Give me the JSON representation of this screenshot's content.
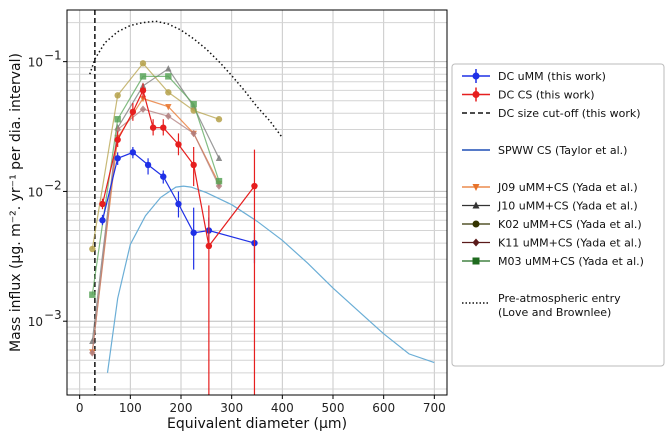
{
  "chart_data": {
    "type": "line",
    "xlabel": "Equivalent diameter (μm)",
    "ylabel": "Mass influx (μg. m⁻². yr⁻¹ per dia. interval)",
    "xlim": [
      -25,
      725
    ],
    "ylim": [
      0.00027,
      0.25
    ],
    "yscale": "log",
    "grid": true,
    "legend_position": "right",
    "x_ticks": [
      0,
      100,
      200,
      300,
      400,
      500,
      600,
      700
    ],
    "x_tick_labels": [
      "0",
      "100",
      "200",
      "300",
      "400",
      "500",
      "600",
      "700"
    ],
    "y_ticks": [
      0.001,
      0.01,
      0.1
    ],
    "y_tick_labels": [
      "10",
      "10",
      "10"
    ],
    "y_tick_exponents": [
      "−3",
      "−2",
      "−1"
    ],
    "cutoff_x": 30,
    "series": [
      {
        "name": "DC uMM (this work)",
        "color": "#1f30e6",
        "marker": "circle",
        "x": [
          45,
          75,
          105,
          135,
          165,
          195,
          225,
          255,
          345
        ],
        "y": [
          0.006,
          0.018,
          0.02,
          0.016,
          0.013,
          0.008,
          0.0048,
          0.005,
          0.004
        ],
        "yerr_low": [
          0.0055,
          0.016,
          0.018,
          0.0135,
          0.0115,
          0.0063,
          0.0025,
          0.0038,
          0.0028
        ],
        "yerr_high": [
          0.0066,
          0.02,
          0.022,
          0.018,
          0.0145,
          0.01,
          0.0075,
          0.0063,
          0.0048
        ]
      },
      {
        "name": "DC CS (this work)",
        "color": "#e61f1f",
        "marker": "circle",
        "x": [
          45,
          75,
          105,
          125,
          145,
          165,
          195,
          225,
          255,
          345
        ],
        "y": [
          0.008,
          0.025,
          0.041,
          0.06,
          0.031,
          0.031,
          0.023,
          0.016,
          0.0038,
          0.011
        ],
        "yerr_low": [
          0.0073,
          0.022,
          0.035,
          0.052,
          0.027,
          0.027,
          0.019,
          0.011,
          0.00027,
          0.00027
        ],
        "yerr_high": [
          0.0088,
          0.029,
          0.048,
          0.068,
          0.036,
          0.036,
          0.028,
          0.022,
          0.0078,
          0.021
        ]
      },
      {
        "name": "SPWW CS (Taylor et al.)",
        "color": "#6baed6",
        "marker": "none",
        "x": [
          55,
          75,
          100,
          130,
          160,
          190,
          205,
          220,
          250,
          300,
          350,
          400,
          450,
          500,
          550,
          600,
          650,
          700
        ],
        "y": [
          0.0004,
          0.0015,
          0.0039,
          0.0065,
          0.009,
          0.0108,
          0.011,
          0.0108,
          0.0098,
          0.0079,
          0.0059,
          0.0042,
          0.0028,
          0.0018,
          0.0012,
          0.0008,
          0.00056,
          0.00048
        ]
      },
      {
        "name": "J09 uMM+CS (Yada et al.)",
        "color": "#e8732a",
        "marker": "triangle-down",
        "x": [
          25,
          75,
          125,
          175,
          225,
          275
        ],
        "y": [
          0.00058,
          0.026,
          0.052,
          0.045,
          0.028,
          0.0115
        ]
      },
      {
        "name": "J10 uMM+CS (Yada et al.)",
        "color": "#7a7a7a",
        "marker": "triangle-up",
        "x": [
          25,
          75,
          125,
          175,
          225,
          275
        ],
        "y": [
          0.0007,
          0.031,
          0.065,
          0.088,
          0.045,
          0.018
        ]
      },
      {
        "name": "K02 uMM+CS (Yada et al.)",
        "color": "#b5a14a",
        "marker": "circle",
        "x": [
          25,
          75,
          125,
          175,
          225,
          275
        ],
        "y": [
          0.0036,
          0.055,
          0.097,
          0.058,
          0.042,
          0.036
        ]
      },
      {
        "name": "K11 uMM+CS (Yada et al.)",
        "color": "#b07d7d",
        "marker": "diamond",
        "x": [
          25,
          75,
          125,
          175,
          225,
          275
        ],
        "y": [
          0.00057,
          0.03,
          0.043,
          0.038,
          0.028,
          0.011
        ]
      },
      {
        "name": "M03 uMM+CS (Yada et al.)",
        "color": "#5aa55a",
        "marker": "square",
        "x": [
          25,
          75,
          125,
          175,
          225,
          275
        ],
        "y": [
          0.0016,
          0.036,
          0.077,
          0.077,
          0.047,
          0.012
        ]
      },
      {
        "name": "Pre-atmospheric entry (Love and Brownlee)",
        "color": "#111111",
        "marker": "none",
        "x": [
          20,
          30,
          50,
          75,
          100,
          125,
          150,
          175,
          200,
          225,
          250,
          275,
          300,
          325,
          350,
          375,
          400
        ],
        "y": [
          0.08,
          0.105,
          0.14,
          0.17,
          0.19,
          0.2,
          0.205,
          0.195,
          0.175,
          0.15,
          0.125,
          0.1,
          0.078,
          0.06,
          0.045,
          0.035,
          0.026
        ]
      }
    ]
  },
  "legend": {
    "entries": [
      {
        "label": "DC uMM (this work)",
        "color": "#1f30e6",
        "symbol": "errorbar-circle",
        "gap_before": 0
      },
      {
        "label": "DC CS (this work)",
        "color": "#e61f1f",
        "symbol": "errorbar-circle",
        "gap_before": 0
      },
      {
        "label": "DC size cut-off (this work)",
        "color": "#111111",
        "symbol": "dashed-line",
        "gap_before": 0
      },
      {
        "label": "SPWW CS (Taylor et al.)",
        "color": "#1f4fb5",
        "symbol": "line",
        "gap_before": 1
      },
      {
        "label": "J09 uMM+CS (Yada et al.)",
        "color": "#e8732a",
        "symbol": "triangle-down",
        "gap_before": 1
      },
      {
        "label": "J10 uMM+CS (Yada et al.)",
        "color": "#333333",
        "symbol": "triangle-up",
        "gap_before": 0
      },
      {
        "label": "K02 uMM+CS (Yada et al.)",
        "color": "#333300",
        "symbol": "circle",
        "gap_before": 0
      },
      {
        "label": "K11 uMM+CS (Yada et al.)",
        "color": "#5a1a1a",
        "symbol": "diamond",
        "gap_before": 0
      },
      {
        "label": "M03 uMM+CS (Yada et al.)",
        "color": "#1f6b1f",
        "symbol": "square",
        "gap_before": 0
      },
      {
        "label": "Pre-atmospheric entry",
        "label2": "(Love and Brownlee)",
        "color": "#111111",
        "symbol": "dotted-line",
        "gap_before": 1
      }
    ]
  }
}
